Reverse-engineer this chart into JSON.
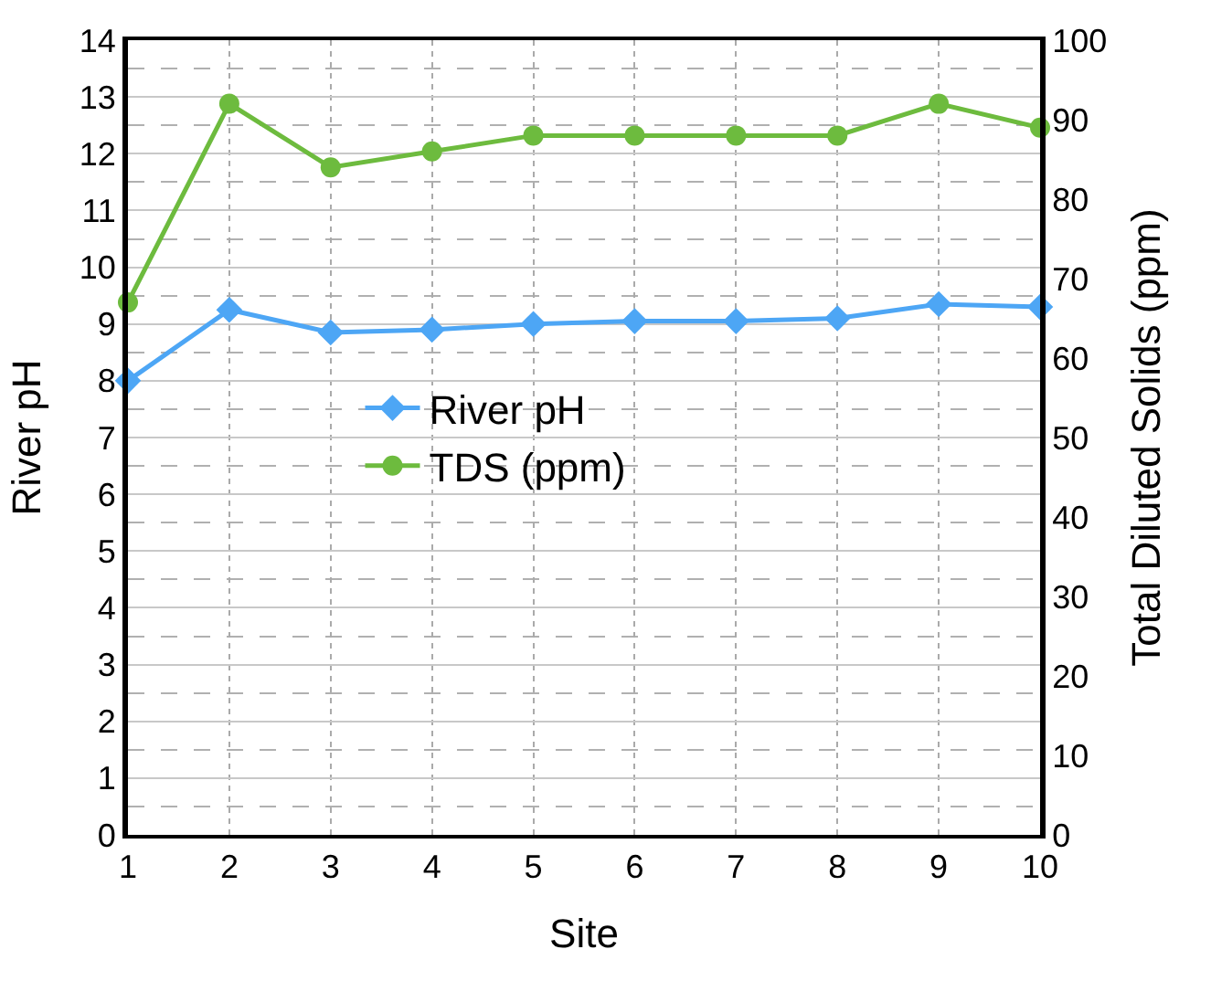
{
  "chart_data": {
    "type": "line",
    "xlabel": "Site",
    "ylabel": "River pH",
    "y2label": "Total Diluted Solids (ppm)",
    "x": [
      1,
      2,
      3,
      4,
      5,
      6,
      7,
      8,
      9,
      10
    ],
    "series": [
      {
        "name": "River pH",
        "color": "#4da6f5",
        "marker": "diamond",
        "values": [
          8.0,
          9.25,
          8.85,
          8.9,
          9.0,
          9.05,
          9.05,
          9.1,
          9.35,
          9.3
        ]
      },
      {
        "name": "TDS (ppm)",
        "color": "#6dbb3e",
        "marker": "circle",
        "axis": "y2",
        "values": [
          67,
          92,
          84,
          86,
          88,
          88,
          88,
          88,
          92,
          89
        ]
      }
    ],
    "xlim": [
      1,
      10
    ],
    "xticks": [
      1,
      2,
      3,
      4,
      5,
      6,
      7,
      8,
      9,
      10
    ],
    "ylim": [
      0,
      14
    ],
    "yticks": [
      0,
      1,
      2,
      3,
      4,
      5,
      6,
      7,
      8,
      9,
      10,
      11,
      12,
      13,
      14
    ],
    "y2lim": [
      0,
      100
    ],
    "y2ticks": [
      0,
      10,
      20,
      30,
      40,
      50,
      60,
      70,
      80,
      90,
      100
    ],
    "grid": true,
    "legend": "left",
    "line_style": "solid"
  }
}
